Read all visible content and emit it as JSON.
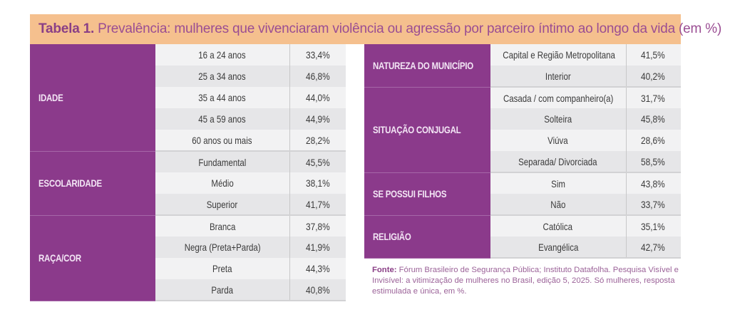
{
  "title": {
    "label": "Tabela 1.",
    "text": "Prevalência: mulheres que vivenciaram violência ou agressão por parceiro íntimo ao longo da vida (em %)"
  },
  "colors": {
    "header_band": "#f5c08e",
    "title_text": "#8a3f86",
    "group_bg": "#8b3a8b",
    "group_text": "#f3e6f5",
    "row_light": "#f2f2f3",
    "row_dark": "#e6e6e8"
  },
  "left_table": [
    {
      "group": "IDADE",
      "rows": [
        {
          "label": "16 a 24 anos",
          "value": "33,4%"
        },
        {
          "label": "25 a 34 anos",
          "value": "46,8%"
        },
        {
          "label": "35 a 44 anos",
          "value": "44,0%"
        },
        {
          "label": "45 a 59 anos",
          "value": "44,9%"
        },
        {
          "label": "60 anos ou mais",
          "value": "28,2%"
        }
      ]
    },
    {
      "group": "ESCOLARIDADE",
      "rows": [
        {
          "label": "Fundamental",
          "value": "45,5%"
        },
        {
          "label": "Médio",
          "value": "38,1%"
        },
        {
          "label": "Superior",
          "value": "41,7%"
        }
      ]
    },
    {
      "group": "RAÇA/COR",
      "rows": [
        {
          "label": "Branca",
          "value": "37,8%"
        },
        {
          "label": "Negra (Preta+Parda)",
          "value": "41,9%"
        },
        {
          "label": "Preta",
          "value": "44,3%"
        },
        {
          "label": "Parda",
          "value": "40,8%"
        }
      ]
    }
  ],
  "right_table": [
    {
      "group": "NATUREZA DO MUNICÍPIO",
      "rows": [
        {
          "label": "Capital e Região Metropolitana",
          "value": "41,5%"
        },
        {
          "label": "Interior",
          "value": "40,2%"
        }
      ]
    },
    {
      "group": "SITUAÇÃO CONJUGAL",
      "rows": [
        {
          "label": "Casada / com companheiro(a)",
          "value": "31,7%"
        },
        {
          "label": "Solteira",
          "value": "45,8%"
        },
        {
          "label": "Viúva",
          "value": "28,6%"
        },
        {
          "label": "Separada/ Divorciada",
          "value": "58,5%"
        }
      ]
    },
    {
      "group": "SE POSSUI FILHOS",
      "rows": [
        {
          "label": "Sim",
          "value": "43,8%"
        },
        {
          "label": "Não",
          "value": "33,7%"
        }
      ]
    },
    {
      "group": "RELIGIÃO",
      "rows": [
        {
          "label": "Católica",
          "value": "35,1%"
        },
        {
          "label": "Evangélica",
          "value": "42,7%"
        }
      ]
    }
  ],
  "source": {
    "label": "Fonte:",
    "text": "Fórum Brasileiro de Segurança Pública; Instituto Datafolha. Pesquisa Visível e Invisível: a vitimização de mulheres no Brasil, edição 5, 2025. Só mulheres, resposta estimulada e única, em %."
  }
}
